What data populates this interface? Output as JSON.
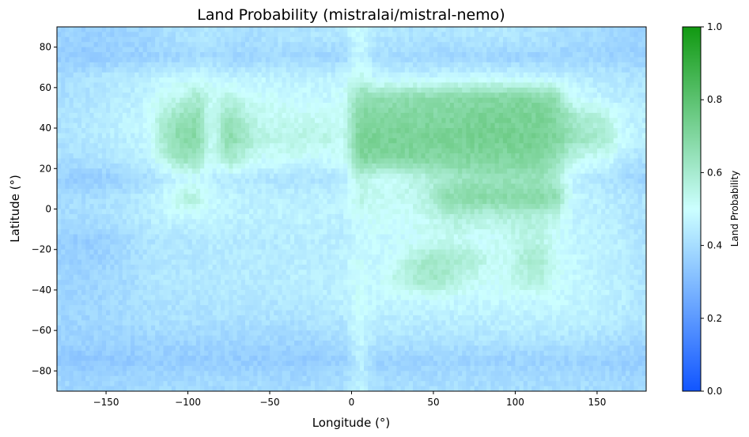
{
  "chart_data": {
    "type": "heatmap",
    "title": "Land Probability (mistralai/mistral-nemo)",
    "xlabel": "Longitude (°)",
    "ylabel": "Latitude (°)",
    "xlim": [
      -180,
      180
    ],
    "ylim": [
      -90,
      90
    ],
    "xticks": [
      -150,
      -100,
      -50,
      0,
      50,
      100,
      150
    ],
    "xtick_labels": [
      "−150",
      "−100",
      "−50",
      "0",
      "50",
      "100",
      "150"
    ],
    "yticks": [
      -80,
      -60,
      -40,
      -20,
      0,
      20,
      40,
      60,
      80
    ],
    "ytick_labels": [
      "−80",
      "−60",
      "−40",
      "−20",
      "0",
      "20",
      "40",
      "60",
      "80"
    ],
    "grid_resolution_deg": 10,
    "grid_lon_start": -180,
    "grid_lat_start_top": 90,
    "values": [
      [
        0.37,
        0.36,
        0.36,
        0.37,
        0.38,
        0.38,
        0.4,
        0.41,
        0.42,
        0.42,
        0.41,
        0.4,
        0.41,
        0.42,
        0.42,
        0.42,
        0.43,
        0.43,
        0.5,
        0.43,
        0.42,
        0.42,
        0.42,
        0.42,
        0.42,
        0.43,
        0.43,
        0.43,
        0.42,
        0.42,
        0.41,
        0.4,
        0.4,
        0.39,
        0.38,
        0.37
      ],
      [
        0.36,
        0.35,
        0.35,
        0.36,
        0.36,
        0.37,
        0.38,
        0.38,
        0.39,
        0.39,
        0.38,
        0.38,
        0.38,
        0.39,
        0.39,
        0.39,
        0.38,
        0.38,
        0.48,
        0.4,
        0.4,
        0.39,
        0.38,
        0.38,
        0.38,
        0.38,
        0.38,
        0.37,
        0.37,
        0.37,
        0.37,
        0.38,
        0.38,
        0.37,
        0.37,
        0.37
      ],
      [
        0.4,
        0.41,
        0.42,
        0.43,
        0.44,
        0.45,
        0.47,
        0.48,
        0.5,
        0.48,
        0.46,
        0.46,
        0.47,
        0.46,
        0.46,
        0.46,
        0.46,
        0.47,
        0.55,
        0.47,
        0.47,
        0.47,
        0.47,
        0.48,
        0.48,
        0.48,
        0.48,
        0.48,
        0.47,
        0.47,
        0.46,
        0.45,
        0.44,
        0.44,
        0.43,
        0.42
      ],
      [
        0.41,
        0.42,
        0.43,
        0.44,
        0.45,
        0.47,
        0.52,
        0.54,
        0.6,
        0.52,
        0.55,
        0.52,
        0.5,
        0.5,
        0.49,
        0.48,
        0.48,
        0.5,
        0.66,
        0.66,
        0.66,
        0.67,
        0.67,
        0.68,
        0.68,
        0.69,
        0.69,
        0.7,
        0.7,
        0.69,
        0.66,
        0.5,
        0.48,
        0.46,
        0.45,
        0.44
      ],
      [
        0.42,
        0.43,
        0.44,
        0.45,
        0.46,
        0.48,
        0.58,
        0.64,
        0.67,
        0.5,
        0.65,
        0.58,
        0.53,
        0.52,
        0.52,
        0.52,
        0.51,
        0.52,
        0.7,
        0.7,
        0.7,
        0.7,
        0.7,
        0.7,
        0.71,
        0.72,
        0.72,
        0.72,
        0.72,
        0.72,
        0.69,
        0.62,
        0.58,
        0.56,
        0.48,
        0.45
      ],
      [
        0.42,
        0.43,
        0.44,
        0.45,
        0.46,
        0.48,
        0.6,
        0.68,
        0.69,
        0.52,
        0.68,
        0.62,
        0.55,
        0.55,
        0.56,
        0.55,
        0.55,
        0.52,
        0.72,
        0.72,
        0.72,
        0.72,
        0.72,
        0.72,
        0.72,
        0.73,
        0.73,
        0.73,
        0.73,
        0.73,
        0.7,
        0.64,
        0.62,
        0.6,
        0.5,
        0.46
      ],
      [
        0.4,
        0.41,
        0.42,
        0.43,
        0.44,
        0.46,
        0.55,
        0.64,
        0.64,
        0.5,
        0.62,
        0.55,
        0.5,
        0.5,
        0.5,
        0.49,
        0.49,
        0.5,
        0.7,
        0.7,
        0.7,
        0.7,
        0.7,
        0.7,
        0.7,
        0.7,
        0.7,
        0.7,
        0.7,
        0.7,
        0.66,
        0.55,
        0.52,
        0.5,
        0.45,
        0.42
      ],
      [
        0.36,
        0.35,
        0.35,
        0.36,
        0.38,
        0.4,
        0.44,
        0.46,
        0.48,
        0.45,
        0.44,
        0.43,
        0.43,
        0.42,
        0.42,
        0.42,
        0.42,
        0.44,
        0.55,
        0.52,
        0.52,
        0.54,
        0.56,
        0.6,
        0.62,
        0.64,
        0.64,
        0.64,
        0.64,
        0.64,
        0.6,
        0.46,
        0.44,
        0.42,
        0.4,
        0.38
      ],
      [
        0.4,
        0.4,
        0.41,
        0.42,
        0.43,
        0.45,
        0.48,
        0.56,
        0.57,
        0.48,
        0.47,
        0.46,
        0.46,
        0.46,
        0.46,
        0.46,
        0.46,
        0.47,
        0.55,
        0.52,
        0.52,
        0.53,
        0.55,
        0.66,
        0.68,
        0.68,
        0.68,
        0.68,
        0.68,
        0.68,
        0.66,
        0.48,
        0.46,
        0.45,
        0.44,
        0.42
      ],
      [
        0.4,
        0.4,
        0.41,
        0.42,
        0.43,
        0.44,
        0.46,
        0.47,
        0.47,
        0.47,
        0.46,
        0.46,
        0.46,
        0.46,
        0.46,
        0.46,
        0.46,
        0.46,
        0.5,
        0.5,
        0.5,
        0.51,
        0.52,
        0.55,
        0.57,
        0.56,
        0.55,
        0.56,
        0.57,
        0.57,
        0.52,
        0.47,
        0.46,
        0.45,
        0.44,
        0.42
      ],
      [
        0.36,
        0.35,
        0.36,
        0.38,
        0.4,
        0.42,
        0.43,
        0.43,
        0.43,
        0.44,
        0.44,
        0.44,
        0.44,
        0.44,
        0.45,
        0.45,
        0.45,
        0.45,
        0.48,
        0.48,
        0.48,
        0.49,
        0.52,
        0.52,
        0.52,
        0.5,
        0.5,
        0.52,
        0.54,
        0.55,
        0.5,
        0.47,
        0.47,
        0.46,
        0.45,
        0.42
      ],
      [
        0.37,
        0.36,
        0.37,
        0.38,
        0.4,
        0.42,
        0.43,
        0.43,
        0.43,
        0.44,
        0.44,
        0.44,
        0.44,
        0.44,
        0.45,
        0.45,
        0.45,
        0.46,
        0.5,
        0.48,
        0.5,
        0.56,
        0.6,
        0.62,
        0.6,
        0.58,
        0.52,
        0.52,
        0.58,
        0.6,
        0.52,
        0.48,
        0.47,
        0.46,
        0.45,
        0.43
      ],
      [
        0.38,
        0.37,
        0.38,
        0.39,
        0.4,
        0.42,
        0.43,
        0.43,
        0.43,
        0.44,
        0.44,
        0.44,
        0.44,
        0.44,
        0.45,
        0.45,
        0.45,
        0.46,
        0.5,
        0.48,
        0.54,
        0.58,
        0.62,
        0.6,
        0.56,
        0.52,
        0.5,
        0.52,
        0.56,
        0.58,
        0.5,
        0.48,
        0.47,
        0.46,
        0.45,
        0.43
      ],
      [
        0.38,
        0.38,
        0.38,
        0.39,
        0.4,
        0.41,
        0.42,
        0.42,
        0.42,
        0.43,
        0.43,
        0.43,
        0.43,
        0.43,
        0.44,
        0.44,
        0.45,
        0.46,
        0.5,
        0.47,
        0.47,
        0.48,
        0.48,
        0.48,
        0.48,
        0.48,
        0.48,
        0.48,
        0.48,
        0.48,
        0.48,
        0.47,
        0.47,
        0.46,
        0.45,
        0.43
      ],
      [
        0.38,
        0.38,
        0.38,
        0.39,
        0.4,
        0.4,
        0.41,
        0.41,
        0.41,
        0.41,
        0.41,
        0.41,
        0.41,
        0.41,
        0.41,
        0.42,
        0.42,
        0.43,
        0.5,
        0.45,
        0.45,
        0.45,
        0.45,
        0.45,
        0.45,
        0.45,
        0.45,
        0.46,
        0.46,
        0.46,
        0.46,
        0.46,
        0.46,
        0.45,
        0.44,
        0.43
      ],
      [
        0.37,
        0.37,
        0.37,
        0.37,
        0.37,
        0.38,
        0.38,
        0.38,
        0.38,
        0.38,
        0.38,
        0.38,
        0.38,
        0.38,
        0.38,
        0.38,
        0.39,
        0.4,
        0.48,
        0.42,
        0.42,
        0.42,
        0.42,
        0.42,
        0.42,
        0.42,
        0.42,
        0.42,
        0.42,
        0.42,
        0.42,
        0.42,
        0.41,
        0.41,
        0.4,
        0.39
      ],
      [
        0.34,
        0.33,
        0.33,
        0.34,
        0.34,
        0.35,
        0.35,
        0.35,
        0.35,
        0.35,
        0.35,
        0.35,
        0.35,
        0.35,
        0.35,
        0.35,
        0.36,
        0.36,
        0.45,
        0.37,
        0.37,
        0.37,
        0.37,
        0.37,
        0.37,
        0.37,
        0.37,
        0.37,
        0.37,
        0.37,
        0.37,
        0.37,
        0.37,
        0.36,
        0.36,
        0.35
      ],
      [
        0.38,
        0.38,
        0.38,
        0.38,
        0.38,
        0.39,
        0.39,
        0.39,
        0.39,
        0.39,
        0.39,
        0.39,
        0.39,
        0.39,
        0.39,
        0.39,
        0.4,
        0.4,
        0.46,
        0.4,
        0.4,
        0.4,
        0.4,
        0.4,
        0.4,
        0.4,
        0.4,
        0.4,
        0.4,
        0.4,
        0.4,
        0.4,
        0.4,
        0.39,
        0.39,
        0.38
      ]
    ],
    "colorbar": {
      "label": "Land Probability",
      "range": [
        0,
        1
      ],
      "ticks": [
        0,
        0.2,
        0.4,
        0.6,
        0.8,
        1.0
      ],
      "tick_labels": [
        "0.0",
        "0.2",
        "0.4",
        "0.6",
        "0.8",
        "1.0"
      ],
      "colors": [
        "#1155ff",
        "#ccffff",
        "#119911"
      ]
    }
  }
}
